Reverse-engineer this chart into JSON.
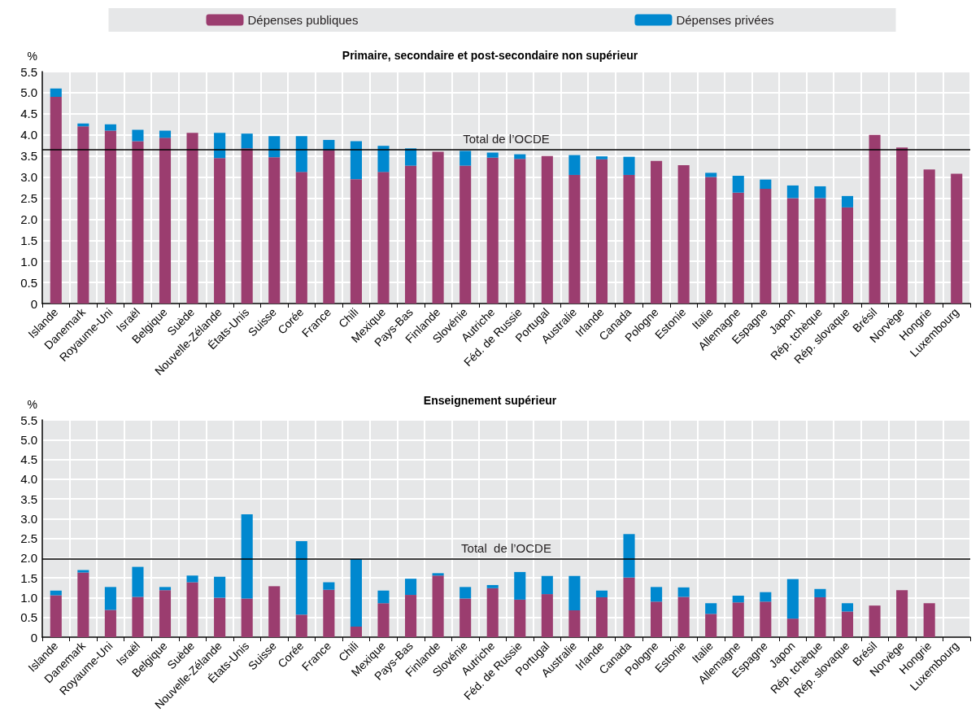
{
  "chart_data": [
    {
      "type": "bar",
      "title": "Primaire, secondaire et post-secondaire non supérieur",
      "ylabel": "%",
      "stacked": true,
      "grid": true,
      "legend": "top",
      "categories": [
        "Islande",
        "Danemark",
        "Royaume-Uni",
        "Israël",
        "Belgique",
        "Suède",
        "Nouvelle-Zélande",
        "États-Unis",
        "Suisse",
        "Corée",
        "France",
        "Chili",
        "Mexique",
        "Pays-Bas",
        "Finlande",
        "Slovénie",
        "Autriche",
        "Féd. de Russie",
        "Portugal",
        "Australie",
        "Irlande",
        "Canada",
        "Pologne",
        "Estonie",
        "Italie",
        "Allemagne",
        "Espagne",
        "Japon",
        "Rép. tchèque",
        "Rép. slovaque",
        "Brésil",
        "Norvège",
        "Hongrie",
        "Luxembourg"
      ],
      "series": [
        {
          "name": "Dépenses publiques",
          "color": "#9b3d6f",
          "values": [
            4.9,
            4.2,
            4.1,
            3.85,
            3.93,
            4.05,
            3.45,
            3.68,
            3.47,
            3.12,
            3.63,
            2.95,
            3.12,
            3.27,
            3.6,
            3.27,
            3.46,
            3.43,
            3.5,
            3.05,
            3.42,
            3.05,
            3.38,
            3.28,
            3.0,
            2.63,
            2.72,
            2.5,
            2.5,
            2.28,
            4.0,
            3.7,
            3.18,
            3.08
          ]
        },
        {
          "name": "Dépenses privées",
          "color": "#0088cf",
          "values": [
            0.2,
            0.07,
            0.15,
            0.27,
            0.17,
            null,
            0.6,
            0.35,
            0.5,
            0.85,
            0.25,
            0.9,
            0.62,
            0.41,
            null,
            0.35,
            0.12,
            0.11,
            null,
            0.47,
            0.07,
            0.43,
            null,
            null,
            0.1,
            0.4,
            0.22,
            0.3,
            0.28,
            0.27,
            null,
            null,
            null,
            null
          ]
        }
      ],
      "ylim": [
        0,
        5.5
      ],
      "yticks": [
        {
          "value": 0,
          "label": "0"
        },
        {
          "value": 0.5,
          "label": "0.5"
        },
        {
          "value": 1,
          "label": "1.0"
        },
        {
          "value": 1.5,
          "label": "1.5"
        },
        {
          "value": 2,
          "label": "2.0"
        },
        {
          "value": 2.5,
          "label": "2.5"
        },
        {
          "value": 3,
          "label": "3.0"
        },
        {
          "value": 3.5,
          "label": "3.5"
        },
        {
          "value": 4,
          "label": "4.0"
        },
        {
          "value": 4.5,
          "label": "4.5"
        },
        {
          "value": 5,
          "label": "5.0"
        },
        {
          "value": 5.5,
          "label": "5.5"
        }
      ],
      "ref_lines": [
        {
          "axis": "y",
          "value": 3.66,
          "label": "Total de l’OCDE",
          "color": "#000000"
        }
      ]
    },
    {
      "type": "bar",
      "title": "Enseignement supérieur",
      "ylabel": "%",
      "stacked": true,
      "grid": true,
      "categories": [
        "Islande",
        "Danemark",
        "Royaume-Uni",
        "Israël",
        "Belgique",
        "Suède",
        "Nouvelle-Zélande",
        "États-Unis",
        "Suisse",
        "Corée",
        "France",
        "Chili",
        "Mexique",
        "Pays-Bas",
        "Finlande",
        "Slovénie",
        "Autriche",
        "Féd. de Russie",
        "Portugal",
        "Australie",
        "Irlande",
        "Canada",
        "Pologne",
        "Estonie",
        "Italie",
        "Allemagne",
        "Espagne",
        "Japon",
        "Rép. tchèque",
        "Rép. slovaque",
        "Brésil",
        "Norvège",
        "Hongrie",
        "Luxembourg"
      ],
      "series": [
        {
          "color": "#9b3d6f",
          "values": [
            1.06,
            1.64,
            0.69,
            1.02,
            1.19,
            1.39,
            1.0,
            0.98,
            1.29,
            0.57,
            1.2,
            0.27,
            0.86,
            1.07,
            1.56,
            0.98,
            1.24,
            0.95,
            1.09,
            0.68,
            1.01,
            1.51,
            0.9,
            1.02,
            0.59,
            0.88,
            0.9,
            0.47,
            1.01,
            0.65,
            0.8,
            1.19,
            0.86,
            null
          ]
        },
        {
          "color": "#0088cf",
          "values": [
            0.12,
            0.06,
            0.58,
            0.76,
            0.08,
            0.17,
            0.53,
            2.13,
            null,
            1.86,
            0.19,
            1.71,
            0.32,
            0.41,
            0.06,
            0.29,
            0.08,
            0.7,
            0.46,
            0.87,
            0.17,
            1.1,
            0.37,
            0.24,
            0.27,
            0.17,
            0.24,
            1.0,
            0.21,
            0.21,
            null,
            null,
            null,
            null
          ]
        }
      ],
      "ylim": [
        0,
        5.5
      ],
      "yticks": [
        {
          "value": 0,
          "label": "0"
        },
        {
          "value": 0.5,
          "label": "0.5"
        },
        {
          "value": 1,
          "label": "1.0"
        },
        {
          "value": 1.5,
          "label": "1.5"
        },
        {
          "value": 2,
          "label": "2.0"
        },
        {
          "value": 2.5,
          "label": "2.5"
        },
        {
          "value": 3,
          "label": "3.0"
        },
        {
          "value": 3.5,
          "label": "3.5"
        },
        {
          "value": 4,
          "label": "4.0"
        },
        {
          "value": 4.5,
          "label": "4.5"
        },
        {
          "value": 5,
          "label": "5.0"
        },
        {
          "value": 5.5,
          "label": "5.5"
        }
      ],
      "ref_lines": [
        {
          "axis": "y",
          "value": 1.99,
          "label": "Total  de l’OCDE",
          "color": "#000000"
        }
      ]
    }
  ]
}
